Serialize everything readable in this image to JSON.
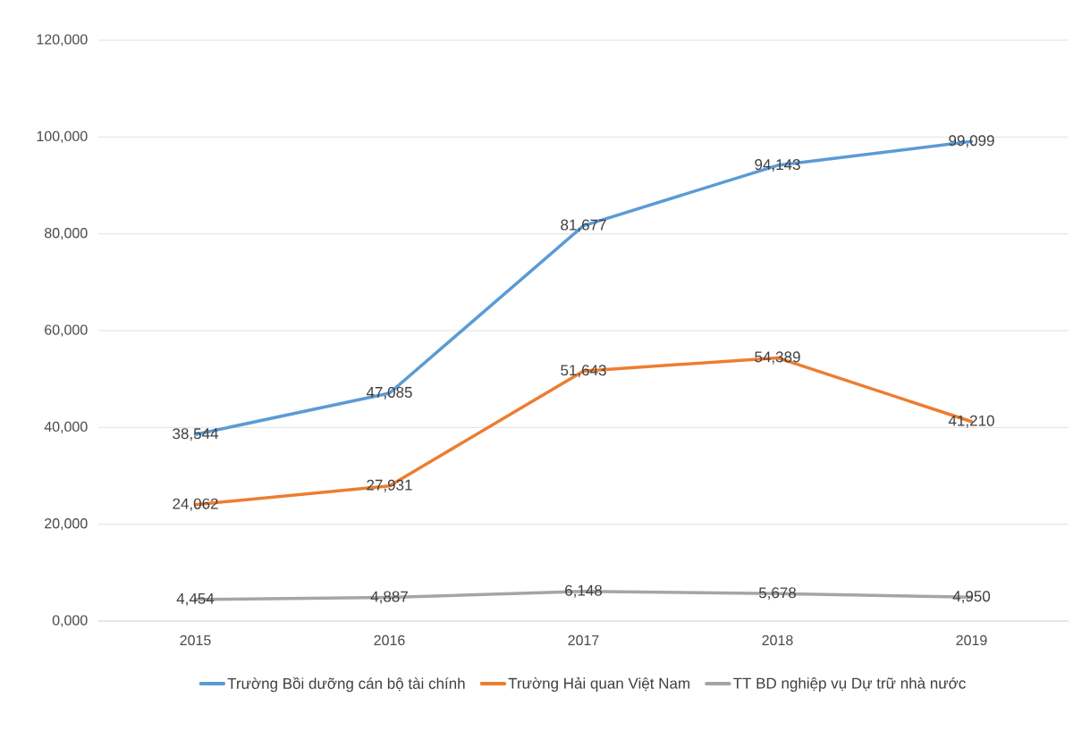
{
  "chart_data": {
    "type": "line",
    "categories": [
      "2015",
      "2016",
      "2017",
      "2018",
      "2019"
    ],
    "series": [
      {
        "name": "Trường Bồi dưỡng cán bộ tài chính",
        "color": "#5b9bd5",
        "values": [
          38544,
          47085,
          81677,
          94143,
          99099
        ],
        "value_labels": [
          "38,544",
          "47,085",
          "81,677",
          "94,143",
          "99,099"
        ]
      },
      {
        "name": "Trường Hải quan Việt Nam",
        "color": "#ed7d31",
        "values": [
          24062,
          27931,
          51643,
          54389,
          41210
        ],
        "value_labels": [
          "24,062",
          "27,931",
          "51,643",
          "54,389",
          "41,210"
        ]
      },
      {
        "name": "TT BD nghiệp vụ Dự trữ nhà nước",
        "color": "#a5a5a5",
        "values": [
          4454,
          4887,
          6148,
          5678,
          4950
        ],
        "value_labels": [
          "4,454",
          "4,887",
          "6,148",
          "5,678",
          "4,950"
        ]
      }
    ],
    "ylim": [
      0,
      120000
    ],
    "yticks": [
      {
        "value": 0,
        "label": "0,000"
      },
      {
        "value": 20000,
        "label": "20,000"
      },
      {
        "value": 40000,
        "label": "40,000"
      },
      {
        "value": 60000,
        "label": "60,000"
      },
      {
        "value": 80000,
        "label": "80,000"
      },
      {
        "value": 100000,
        "label": "100,000"
      },
      {
        "value": 120000,
        "label": "120,000"
      }
    ],
    "grid": "y",
    "legend": "bottom",
    "marker": "none",
    "line_style": "solid"
  }
}
